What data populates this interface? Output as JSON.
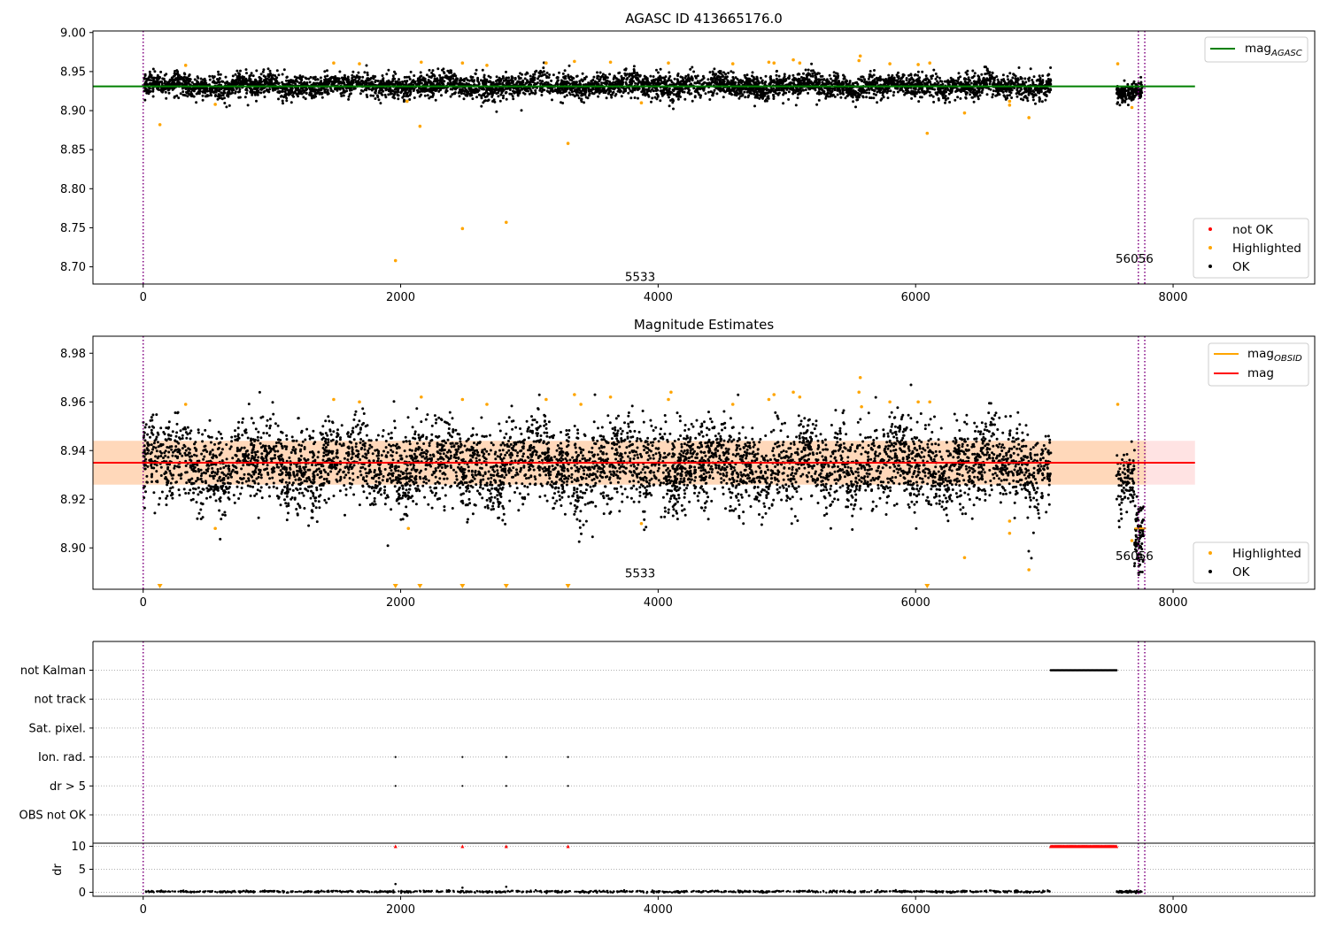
{
  "chart_data": [
    {
      "id": "top",
      "type": "scatter",
      "title": "AGASC ID 413665176.0",
      "xlabel": "",
      "ylabel": "",
      "xlim": [
        -390,
        9100
      ],
      "ylim": [
        8.678,
        9.002
      ],
      "x_ticks": [
        0,
        2000,
        4000,
        6000,
        8000
      ],
      "y_ticks": [
        8.7,
        8.75,
        8.8,
        8.85,
        8.9,
        8.95,
        9.0
      ],
      "y_tick_format": 2,
      "reference_line": {
        "name": "mag_AGASC",
        "label_main": "mag",
        "label_sub": "AGASC",
        "value": 8.931,
        "x_range": [
          -390,
          8170
        ],
        "color": "#008000"
      },
      "vlines": [
        0,
        7730,
        7780
      ],
      "vline_color": "#800080",
      "annotations": [
        {
          "text": "5533",
          "x": 3860,
          "y": 8.682
        },
        {
          "text": "56056",
          "x": 7700,
          "y": 8.705
        }
      ],
      "legend_line": {
        "position": "top-right"
      },
      "legend_points": {
        "position": "bottom-right",
        "entries": [
          {
            "label": "not OK",
            "color": "#ff0000"
          },
          {
            "label": "Highlighted",
            "color": "#ffa500"
          },
          {
            "label": "OK",
            "color": "#000000"
          }
        ]
      },
      "cloud": {
        "segments": [
          {
            "x_range": [
              0,
              7050
            ],
            "n": 5200,
            "center": 8.932,
            "spread": 0.0075
          },
          {
            "x_range": [
              7560,
              7760
            ],
            "n": 180,
            "center": 8.925,
            "spread": 0.006
          }
        ],
        "color": "#000000"
      },
      "highlighted_points": [
        [
          130,
          8.882
        ],
        [
          2150,
          8.88
        ],
        [
          1960,
          8.708
        ],
        [
          2480,
          8.749
        ],
        [
          2820,
          8.757
        ],
        [
          3300,
          8.858
        ],
        [
          6090,
          8.871
        ],
        [
          6380,
          8.897
        ],
        [
          6730,
          8.907
        ],
        [
          6730,
          8.912
        ],
        [
          6880,
          8.891
        ],
        [
          3870,
          8.91
        ],
        [
          7680,
          8.904
        ],
        [
          560,
          8.908
        ],
        [
          2050,
          8.912
        ],
        [
          1480,
          8.961
        ],
        [
          1680,
          8.96
        ],
        [
          2480,
          8.961
        ],
        [
          3130,
          8.961
        ],
        [
          3350,
          8.963
        ],
        [
          3630,
          8.962
        ],
        [
          4080,
          8.961
        ],
        [
          4580,
          8.96
        ],
        [
          4900,
          8.961
        ],
        [
          5050,
          8.965
        ],
        [
          5100,
          8.961
        ],
        [
          5560,
          8.964
        ],
        [
          5570,
          8.97
        ],
        [
          5800,
          8.96
        ],
        [
          6020,
          8.959
        ],
        [
          6110,
          8.961
        ],
        [
          7570,
          8.96
        ],
        [
          330,
          8.958
        ],
        [
          2160,
          8.962
        ],
        [
          2670,
          8.958
        ],
        [
          4860,
          8.962
        ]
      ],
      "highlight_color": "#ffa500"
    },
    {
      "id": "middle",
      "type": "scatter",
      "title": "Magnitude Estimates",
      "xlabel": "",
      "ylabel": "",
      "xlim": [
        -390,
        9100
      ],
      "ylim": [
        8.883,
        8.987
      ],
      "x_ticks": [
        0,
        2000,
        4000,
        6000,
        8000
      ],
      "y_ticks": [
        8.9,
        8.92,
        8.94,
        8.96,
        8.98
      ],
      "y_tick_format": 2,
      "mag_line": {
        "name": "mag",
        "value": 8.935,
        "x_range": [
          -390,
          8170
        ],
        "color": "#ff0000"
      },
      "mag_band": {
        "low": 8.926,
        "high": 8.944,
        "x_range": [
          -390,
          8170
        ],
        "color": "#ffcccc"
      },
      "mag_obsid_band": {
        "name": "mag_OBSID",
        "label_main": "mag",
        "label_sub": "OBSID",
        "low": 8.926,
        "high": 8.944,
        "x_range": [
          -390,
          7790
        ],
        "color": "#ffa500"
      },
      "vlines": [
        0,
        7730,
        7780
      ],
      "vline_color": "#800080",
      "annotations": [
        {
          "text": "5533",
          "x": 3860,
          "y": 8.888
        },
        {
          "text": "56056",
          "x": 7700,
          "y": 8.895
        }
      ],
      "legend_lines": {
        "position": "top-right",
        "entries": [
          {
            "label_main": "mag",
            "label_sub": "OBSID",
            "color": "#ffa500"
          },
          {
            "label_main": "mag",
            "label_sub": "",
            "color": "#ff0000"
          }
        ]
      },
      "legend_points": {
        "position": "bottom-right",
        "entries": [
          {
            "label": "Highlighted",
            "color": "#ffa500"
          },
          {
            "label": "OK",
            "color": "#000000"
          }
        ]
      },
      "cloud": {
        "segments": [
          {
            "x_range": [
              0,
              7050
            ],
            "n": 5200,
            "center": 8.934,
            "spread": 0.0085
          },
          {
            "x_range": [
              7560,
              7700
            ],
            "n": 100,
            "center": 8.93,
            "spread": 0.007
          },
          {
            "x_range": [
              7700,
              7770
            ],
            "n": 90,
            "center": 8.905,
            "spread": 0.008
          }
        ],
        "color": "#000000"
      },
      "highlighted_points": [
        [
          560,
          8.908
        ],
        [
          2060,
          8.908
        ],
        [
          3870,
          8.91
        ],
        [
          6380,
          8.896
        ],
        [
          6880,
          8.891
        ],
        [
          6730,
          8.906
        ],
        [
          6730,
          8.911
        ],
        [
          7680,
          8.903
        ],
        [
          1480,
          8.961
        ],
        [
          1680,
          8.96
        ],
        [
          2480,
          8.961
        ],
        [
          3130,
          8.961
        ],
        [
          3350,
          8.963
        ],
        [
          3630,
          8.962
        ],
        [
          4080,
          8.961
        ],
        [
          4100,
          8.964
        ],
        [
          4580,
          8.959
        ],
        [
          4900,
          8.963
        ],
        [
          5050,
          8.964
        ],
        [
          5100,
          8.962
        ],
        [
          5560,
          8.964
        ],
        [
          5570,
          8.97
        ],
        [
          5800,
          8.96
        ],
        [
          6020,
          8.96
        ],
        [
          6110,
          8.96
        ],
        [
          7570,
          8.959
        ],
        [
          330,
          8.959
        ],
        [
          2160,
          8.962
        ],
        [
          2670,
          8.959
        ],
        [
          4860,
          8.961
        ],
        [
          3400,
          8.959
        ],
        [
          5580,
          8.958
        ]
      ],
      "highlight_color": "#ffa500",
      "clipped_markers": {
        "x": [
          130,
          1960,
          2150,
          2480,
          2820,
          3300,
          6090
        ],
        "color": "#ffa500"
      }
    },
    {
      "id": "flags",
      "type": "scatter",
      "xlim": [
        -390,
        9100
      ],
      "categories": [
        "OBS not OK",
        "dr > 5",
        "Ion. rad.",
        "Sat. pixel.",
        "not track",
        "not Kalman"
      ],
      "vlines": [
        0,
        7730,
        7780
      ],
      "vline_color": "#800080",
      "flag_points": {
        "not Kalman": {
          "x_range": [
            7050,
            7560
          ],
          "n": 60
        },
        "Ion. rad.": {
          "x": [
            1960,
            2480,
            2820,
            3300
          ]
        },
        "dr > 5": {
          "x": [
            1960,
            2480,
            2820,
            3300
          ]
        }
      },
      "color": "#000000"
    },
    {
      "id": "dr",
      "type": "scatter",
      "xlabel": "",
      "ylabel": "dr",
      "xlim": [
        -390,
        9100
      ],
      "ylim": [
        -0.5,
        10.5
      ],
      "y_ticks": [
        0,
        5,
        10
      ],
      "x_ticks": [
        0,
        2000,
        4000,
        6000,
        8000
      ],
      "vlines": [
        0,
        7730,
        7780
      ],
      "vline_color": "#800080",
      "cloud": {
        "segments": [
          {
            "x_range": [
              0,
              7050
            ],
            "n": 1100,
            "center": 0.15,
            "spread": 0.1
          },
          {
            "x_range": [
              7560,
              7760
            ],
            "n": 60,
            "center": 0.15,
            "spread": 0.1
          }
        ],
        "color": "#000000"
      },
      "outliers_black": [
        [
          1960,
          1.8
        ],
        [
          2480,
          1.0
        ],
        [
          2820,
          1.2
        ]
      ],
      "capped_red": {
        "x_fixed": [
          1960,
          2480,
          2820,
          3300
        ],
        "x_range": [
          7050,
          7560
        ],
        "n": 70,
        "value": 10,
        "color": "#ff0000"
      }
    }
  ]
}
